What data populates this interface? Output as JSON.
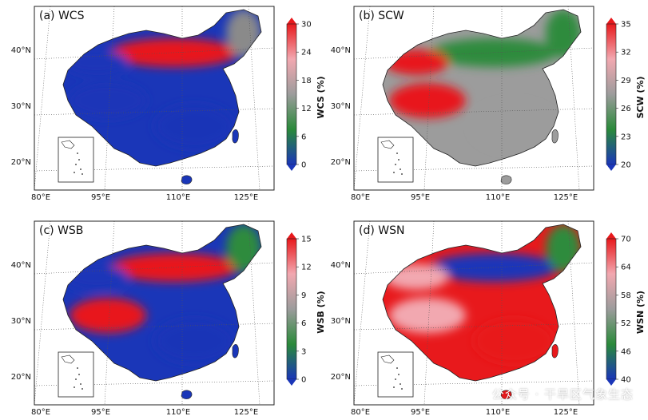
{
  "panels": [
    {
      "tag": "(a)",
      "name": "WCS",
      "cbar_label": "WCS (%)",
      "ticks": [
        "30",
        "24",
        "18",
        "12",
        "6",
        "0"
      ],
      "colors": [
        "#1a36b8",
        "#2a8a3a",
        "#9c9c9c",
        "#f2a8b0",
        "#e8191c"
      ],
      "pattern": {
        "north": "#e8191c",
        "nw": "#1a36b8",
        "tibet": "#1a36b8",
        "south": "#1a36b8",
        "ne": "#8a8a8a"
      }
    },
    {
      "tag": "(b)",
      "name": "SCW",
      "cbar_label": "SCW (%)",
      "ticks": [
        "35",
        "32",
        "29",
        "26",
        "23",
        "20"
      ],
      "colors": [
        "#1a36b8",
        "#2a8a3a",
        "#9c9c9c",
        "#f2a8b0",
        "#e8191c"
      ],
      "pattern": {
        "north": "#2f8b3e",
        "nw": "#e8191c",
        "tibet": "#e8191c",
        "south": "#9c9c9c",
        "ne": "#2f8b3e"
      }
    },
    {
      "tag": "(c)",
      "name": "WSB",
      "cbar_label": "WSB (%)",
      "ticks": [
        "15",
        "12",
        "9",
        "6",
        "3",
        "0"
      ],
      "colors": [
        "#1a36b8",
        "#2a8a3a",
        "#9c9c9c",
        "#f2a8b0",
        "#e8191c"
      ],
      "pattern": {
        "north": "#e8191c",
        "nw": "#1a36b8",
        "tibet": "#e8191c",
        "south": "#1a36b8",
        "ne": "#2f8b3e"
      }
    },
    {
      "tag": "(d)",
      "name": "WSN",
      "cbar_label": "WSN (%)",
      "ticks": [
        "70",
        "64",
        "58",
        "52",
        "46",
        "40"
      ],
      "colors": [
        "#1a36b8",
        "#2a8a3a",
        "#9c9c9c",
        "#f2a8b0",
        "#e8191c"
      ],
      "pattern": {
        "north": "#1a36b8",
        "nw": "#f2a8b0",
        "tibet": "#f2a8b0",
        "south": "#e8191c",
        "ne": "#2f8b3e"
      }
    }
  ],
  "lat_labels": [
    "40°N",
    "30°N",
    "20°N"
  ],
  "lon_labels": [
    "80°E",
    "95°E",
    "110°E",
    "125°E"
  ],
  "watermark": "公众号 · 干旱区气象生态"
}
